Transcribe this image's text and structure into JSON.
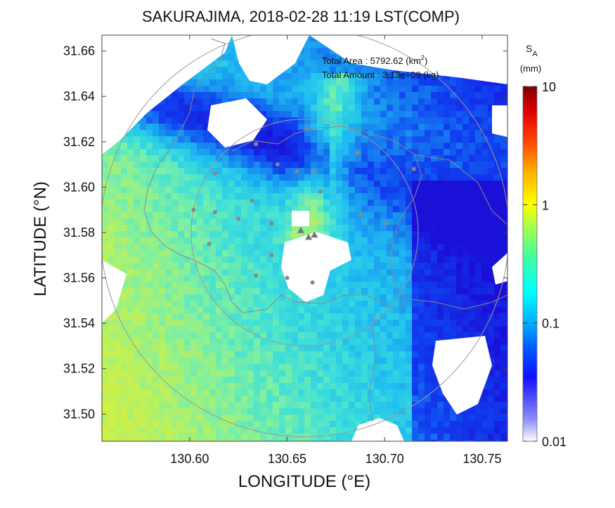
{
  "chart_data": {
    "type": "heatmap",
    "title": "SAKURAJIMA, 2018-02-28 11:19 LST(COMP)",
    "xlabel": "LONGITUDE (°E)",
    "ylabel": "LATITUDE (°N)",
    "xlim": [
      130.555,
      130.763
    ],
    "ylim": [
      31.488,
      31.667
    ],
    "x_ticks": [
      130.6,
      130.65,
      130.7,
      130.75
    ],
    "x_tick_labels": [
      "130.60",
      "130.65",
      "130.70",
      "130.75"
    ],
    "y_ticks": [
      31.5,
      31.52,
      31.54,
      31.56,
      31.58,
      31.6,
      31.62,
      31.64,
      31.66
    ],
    "y_tick_labels": [
      "31.50",
      "31.52",
      "31.54",
      "31.56",
      "31.58",
      "31.60",
      "31.62",
      "31.64",
      "31.66"
    ],
    "annotations": {
      "area_label": "Total Area  : 5792.62 (km",
      "area_sup": "2",
      "area_close": ")",
      "amount_label": "Total Amount : 3.13e+09 (kg)"
    },
    "colorbar": {
      "label_main": "S",
      "label_sub": "A",
      "unit": "(mm)",
      "scale": "log",
      "range": [
        0.01,
        10
      ],
      "ticks": [
        0.01,
        0.1,
        1,
        10
      ],
      "tick_labels": [
        "0.01",
        "0.1",
        "1",
        "10"
      ]
    },
    "vents": [
      {
        "lon": 130.657,
        "lat": 31.581
      },
      {
        "lon": 130.661,
        "lat": 31.578
      },
      {
        "lon": 130.664,
        "lat": 31.579
      }
    ],
    "stations": [
      {
        "lon": 130.634,
        "lat": 31.619
      },
      {
        "lon": 130.66,
        "lat": 31.626
      },
      {
        "lon": 130.613,
        "lat": 31.606
      },
      {
        "lon": 130.645,
        "lat": 31.61
      },
      {
        "lon": 130.667,
        "lat": 31.598
      },
      {
        "lon": 130.686,
        "lat": 31.615
      },
      {
        "lon": 130.655,
        "lat": 31.607
      },
      {
        "lon": 130.664,
        "lat": 31.607
      },
      {
        "lon": 130.715,
        "lat": 31.608
      },
      {
        "lon": 130.602,
        "lat": 31.59
      },
      {
        "lon": 130.613,
        "lat": 31.589
      },
      {
        "lon": 130.625,
        "lat": 31.586
      },
      {
        "lon": 130.632,
        "lat": 31.594
      },
      {
        "lon": 130.642,
        "lat": 31.584
      },
      {
        "lon": 130.688,
        "lat": 31.588
      },
      {
        "lon": 130.701,
        "lat": 31.584
      },
      {
        "lon": 130.61,
        "lat": 31.575
      },
      {
        "lon": 130.642,
        "lat": 31.57
      },
      {
        "lon": 130.634,
        "lat": 31.561
      },
      {
        "lon": 130.65,
        "lat": 31.56
      },
      {
        "lon": 130.663,
        "lat": 31.558
      }
    ],
    "range_circles": [
      {
        "center_lon": 130.659,
        "center_lat": 31.58,
        "radius_deg_lat": 0.05
      },
      {
        "center_lon": 130.659,
        "center_lat": 31.58,
        "radius_deg_lat": 0.09
      }
    ],
    "colors": {
      "low": "#1030e0",
      "mid": "#33b8ee",
      "high": "#c8f040",
      "no_data": "#ffffff",
      "circle": "#999999",
      "marker": "#888888"
    }
  }
}
